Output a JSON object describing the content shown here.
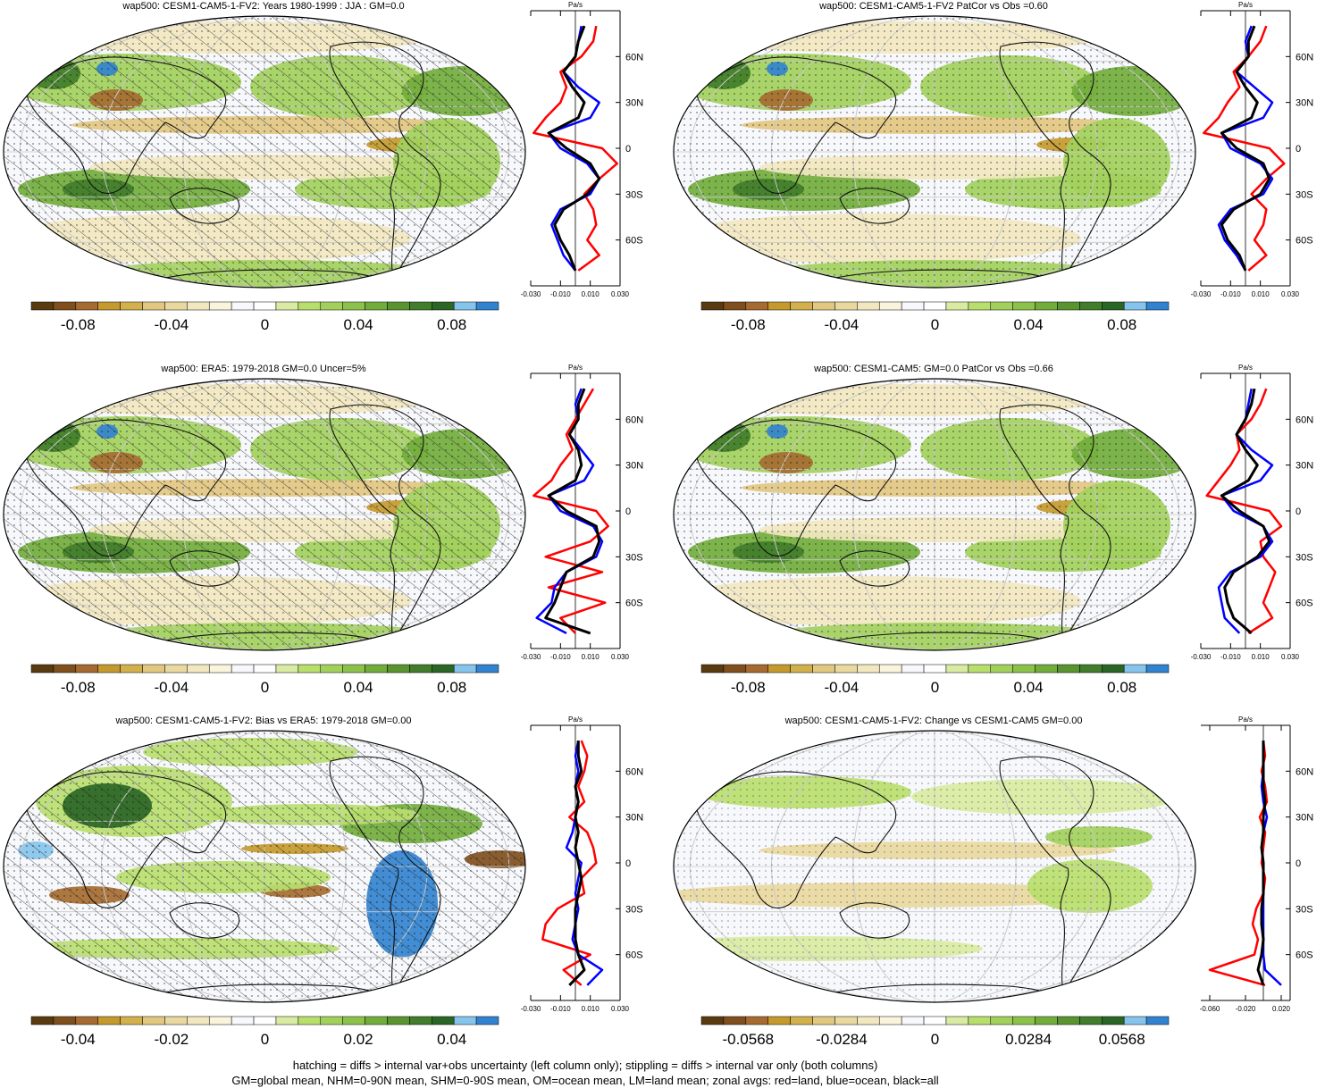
{
  "footer": {
    "line1": "hatching = diffs > internal var+obs uncertainty (left column only); stippling = diffs > internal var only (both columns)",
    "line2": "GM=global mean, NHM=0-90N mean, SHM=0-90S mean, OM=ocean mean, LM=land mean; zonal avgs: red=land, blue=ocean, black=all"
  },
  "colors": {
    "palette": [
      "#5a3a10",
      "#7f4f1e",
      "#a66b30",
      "#c49a2e",
      "#d3b04e",
      "#e2c781",
      "#e9d9a0",
      "#f2e8c0",
      "#faf4dd",
      "#f7f8fb",
      "#ffffff",
      "#d9eba2",
      "#b8de6e",
      "#a2d05c",
      "#8cc24b",
      "#72ad3c",
      "#5a9430",
      "#417d2a",
      "#2a6626",
      "#86c4ec",
      "#3283cf"
    ],
    "land_zonal": "#ff0000",
    "ocean_zonal": "#0000ff",
    "all_zonal": "#000000",
    "ocean_background": "#f7f8fb"
  },
  "chart_data": [
    {
      "type": "heatmap",
      "title": "wap500: CESM1-CAM5-1-FV2: Years 1980-1999 : JJA : GM=0.0",
      "colorbar_ticks": [
        "-0.08",
        "-0.04",
        "0",
        "0.04",
        "0.08"
      ],
      "colorbar_range": [
        -0.1,
        0.1
      ],
      "hatching": true,
      "zonal_profile": {
        "unit": "Pa/s",
        "x_ticks": [
          "-0.030",
          "-0.010",
          "0.010",
          "0.030"
        ],
        "xlim": [
          -0.03,
          0.03
        ],
        "lat_ticks": [
          "60N",
          "30N",
          "0",
          "30S",
          "60S"
        ],
        "lat": [
          80,
          70,
          60,
          50,
          40,
          30,
          20,
          10,
          0,
          -10,
          -20,
          -30,
          -40,
          -50,
          -60,
          -70,
          -80
        ],
        "land": [
          0.014,
          0.012,
          0.004,
          -0.01,
          -0.006,
          -0.01,
          -0.02,
          -0.028,
          0.018,
          0.028,
          0.016,
          0.006,
          0.012,
          0.014,
          0.008,
          0.016,
          0.002
        ],
        "ocean": [
          0.004,
          0.002,
          0.0,
          -0.008,
          0.002,
          0.016,
          0.01,
          -0.018,
          -0.01,
          0.008,
          0.016,
          0.01,
          -0.01,
          -0.016,
          -0.012,
          -0.008,
          0.0
        ],
        "all": [
          0.006,
          0.002,
          0.0,
          -0.008,
          -0.002,
          0.006,
          0.002,
          -0.018,
          -0.006,
          0.01,
          0.016,
          0.008,
          -0.008,
          -0.014,
          -0.01,
          -0.004,
          0.0
        ]
      }
    },
    {
      "type": "heatmap",
      "title": "wap500: CESM1-CAM5-1-FV2 PatCor vs Obs =0.60",
      "colorbar_ticks": [
        "-0.08",
        "-0.04",
        "0",
        "0.04",
        "0.08"
      ],
      "colorbar_range": [
        -0.1,
        0.1
      ],
      "hatching": false,
      "zonal_profile": {
        "unit": "Pa/s",
        "x_ticks": [
          "-0.030",
          "-0.010",
          "0.010",
          "0.030"
        ],
        "xlim": [
          -0.03,
          0.03
        ],
        "lat_ticks": [
          "60N",
          "30N",
          "0",
          "30S",
          "60S"
        ],
        "lat": [
          80,
          70,
          60,
          50,
          40,
          30,
          20,
          10,
          0,
          -10,
          -20,
          -30,
          -40,
          -50,
          -60,
          -70,
          -80
        ],
        "land": [
          0.014,
          0.01,
          0.002,
          -0.008,
          -0.004,
          -0.012,
          -0.018,
          -0.028,
          0.016,
          0.026,
          0.014,
          0.004,
          0.014,
          0.012,
          0.006,
          0.014,
          0.002
        ],
        "ocean": [
          0.004,
          0.0,
          0.002,
          -0.006,
          0.006,
          0.018,
          0.012,
          -0.016,
          -0.01,
          0.01,
          0.018,
          0.012,
          -0.01,
          -0.018,
          -0.014,
          -0.006,
          0.0
        ],
        "all": [
          0.006,
          0.002,
          0.002,
          -0.006,
          0.0,
          0.008,
          0.004,
          -0.016,
          -0.006,
          0.012,
          0.016,
          0.01,
          -0.008,
          -0.016,
          -0.012,
          -0.004,
          0.0
        ]
      }
    },
    {
      "type": "heatmap",
      "title": "wap500: ERA5: 1979-2018 GM=0.0 Uncer=5%",
      "colorbar_ticks": [
        "-0.08",
        "-0.04",
        "0",
        "0.04",
        "0.08"
      ],
      "colorbar_range": [
        -0.1,
        0.1
      ],
      "hatching": true,
      "zonal_profile": {
        "unit": "Pa/s",
        "x_ticks": [
          "-0.030",
          "-0.010",
          "0.010",
          "0.030"
        ],
        "xlim": [
          -0.03,
          0.03
        ],
        "lat_ticks": [
          "60N",
          "30N",
          "0",
          "30S",
          "60S"
        ],
        "lat": [
          80,
          70,
          60,
          50,
          40,
          30,
          20,
          10,
          0,
          -10,
          -20,
          -30,
          -40,
          -50,
          -60,
          -70,
          -80
        ],
        "land": [
          0.012,
          0.006,
          0.0,
          -0.006,
          -0.002,
          -0.01,
          -0.016,
          -0.028,
          0.014,
          0.022,
          0.01,
          -0.02,
          0.018,
          -0.018,
          0.02,
          -0.01,
          0.0
        ],
        "ocean": [
          0.004,
          0.0,
          0.002,
          -0.004,
          0.004,
          0.012,
          0.006,
          -0.018,
          -0.01,
          0.012,
          0.018,
          0.014,
          -0.006,
          -0.014,
          -0.016,
          -0.026,
          -0.006
        ],
        "all": [
          0.006,
          0.002,
          0.002,
          -0.004,
          0.002,
          0.004,
          0.0,
          -0.018,
          -0.006,
          0.014,
          0.016,
          0.012,
          -0.006,
          -0.01,
          -0.014,
          -0.02,
          0.01
        ]
      }
    },
    {
      "type": "heatmap",
      "title": "wap500: CESM1-CAM5: GM=0.0 PatCor vs Obs =0.66",
      "colorbar_ticks": [
        "-0.08",
        "-0.04",
        "0",
        "0.04",
        "0.08"
      ],
      "colorbar_range": [
        -0.1,
        0.1
      ],
      "hatching": false,
      "zonal_profile": {
        "unit": "Pa/s",
        "x_ticks": [
          "-0.030",
          "-0.010",
          "0.010",
          "0.030"
        ],
        "xlim": [
          -0.03,
          0.03
        ],
        "lat_ticks": [
          "60N",
          "30N",
          "0",
          "30S",
          "60S"
        ],
        "lat": [
          80,
          70,
          60,
          50,
          40,
          30,
          20,
          10,
          0,
          -10,
          -20,
          -30,
          -40,
          -50,
          -60,
          -70,
          -80
        ],
        "land": [
          0.014,
          0.01,
          0.004,
          -0.006,
          -0.004,
          -0.01,
          -0.018,
          -0.026,
          0.016,
          0.024,
          0.01,
          0.012,
          0.02,
          0.016,
          0.012,
          0.018,
          0.002
        ],
        "ocean": [
          0.004,
          0.002,
          0.0,
          -0.006,
          0.004,
          0.018,
          0.01,
          -0.016,
          -0.008,
          0.012,
          0.018,
          0.01,
          -0.01,
          -0.018,
          -0.016,
          -0.014,
          -0.004
        ],
        "all": [
          0.006,
          0.004,
          0.0,
          -0.006,
          0.0,
          0.008,
          0.002,
          -0.016,
          -0.004,
          0.012,
          0.016,
          0.008,
          -0.008,
          -0.014,
          -0.012,
          -0.008,
          0.004
        ]
      }
    },
    {
      "type": "heatmap",
      "title": "wap500: CESM1-CAM5-1-FV2: Bias vs ERA5: 1979-2018 GM=0.00",
      "colorbar_ticks": [
        "-0.04",
        "-0.02",
        "0",
        "0.02",
        "0.04"
      ],
      "colorbar_range": [
        -0.05,
        0.05
      ],
      "hatching": true,
      "zonal_profile": {
        "unit": "Pa/s",
        "x_ticks": [
          "-0.030",
          "-0.010",
          "0.010",
          "0.030"
        ],
        "xlim": [
          -0.03,
          0.03
        ],
        "lat_ticks": [
          "60N",
          "30N",
          "0",
          "30S",
          "60S"
        ],
        "lat": [
          80,
          70,
          60,
          50,
          40,
          30,
          20,
          10,
          0,
          -10,
          -20,
          -30,
          -40,
          -50,
          -60,
          -70,
          -80
        ],
        "land": [
          0.004,
          0.008,
          0.006,
          0.002,
          0.006,
          -0.004,
          0.008,
          0.012,
          0.014,
          0.004,
          0.006,
          -0.012,
          -0.02,
          -0.022,
          0.01,
          -0.008,
          0.004
        ],
        "ocean": [
          0.002,
          0.0,
          0.002,
          0.0,
          0.002,
          0.0,
          -0.002,
          -0.006,
          0.004,
          0.002,
          0.0,
          0.002,
          0.0,
          -0.002,
          0.002,
          0.018,
          0.008
        ],
        "all": [
          0.002,
          0.002,
          0.004,
          0.0,
          0.002,
          0.0,
          0.002,
          0.0,
          0.002,
          0.004,
          0.002,
          0.0,
          0.0,
          0.0,
          0.002,
          0.006,
          -0.004
        ]
      }
    },
    {
      "type": "heatmap",
      "title": "wap500: CESM1-CAM5-1-FV2: Change vs CESM1-CAM5 GM=0.00",
      "colorbar_ticks": [
        "-0.0568",
        "-0.0284",
        "0",
        "0.0284",
        "0.0568"
      ],
      "colorbar_range": [
        -0.071,
        0.071
      ],
      "hatching": false,
      "zonal_profile": {
        "unit": "Pa/s",
        "x_ticks": [
          "-0.060",
          "-0.020",
          "0.020"
        ],
        "xlim": [
          -0.07,
          0.03
        ],
        "lat_ticks": [
          "60N",
          "30N",
          "0",
          "30S",
          "60S"
        ],
        "lat": [
          80,
          70,
          60,
          50,
          40,
          30,
          20,
          10,
          0,
          -10,
          -20,
          -30,
          -40,
          -50,
          -60,
          -70,
          -80
        ],
        "land": [
          0.0,
          0.002,
          -0.002,
          0.002,
          0.004,
          -0.004,
          0.002,
          0.0,
          -0.002,
          0.002,
          0.0,
          -0.008,
          -0.012,
          -0.006,
          -0.01,
          -0.06,
          0.002
        ],
        "ocean": [
          0.0,
          0.0,
          0.0,
          -0.002,
          0.0,
          0.004,
          0.0,
          -0.002,
          0.0,
          0.0,
          0.0,
          0.0,
          0.0,
          0.0,
          0.0,
          0.002,
          0.02
        ],
        "all": [
          0.0,
          0.0,
          0.0,
          0.0,
          0.002,
          0.0,
          0.0,
          -0.002,
          0.0,
          0.0,
          0.0,
          -0.002,
          -0.002,
          0.0,
          -0.002,
          -0.006,
          0.0
        ]
      }
    }
  ]
}
